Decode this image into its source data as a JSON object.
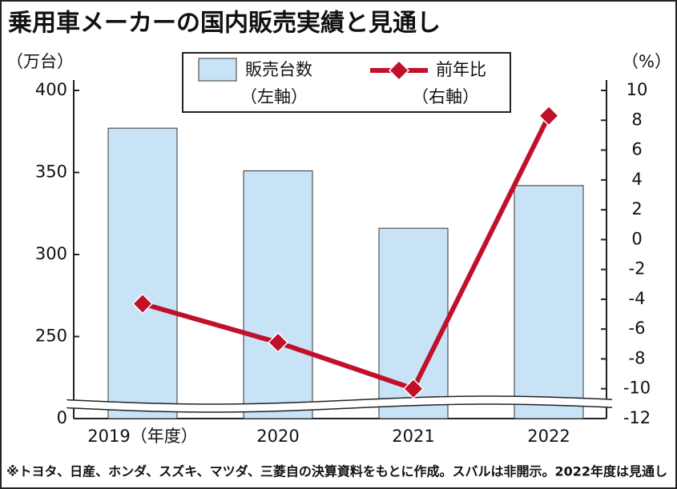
{
  "chart_data": {
    "type": "bar-line",
    "title": "乗用車メーカーの国内販売実績と見通し",
    "footnote": "※トヨタ、日産、ホンダ、スズキ、マツダ、三菱自の決算資料をもとに作成。スバルは非開示。2022年度は見通し",
    "y_unit": "（万台）",
    "y2_unit": "（%）",
    "categories": [
      "2019（年度）",
      "2020",
      "2021",
      "2022"
    ],
    "series": [
      {
        "name": "販売台数",
        "axis_note": "（左軸）",
        "type": "bar",
        "color": "#c8e3f6",
        "values": [
          377,
          351,
          316,
          342
        ]
      },
      {
        "name": "前年比",
        "axis_note": "（右軸）",
        "type": "line",
        "axis": "y2",
        "color": "#c0102a",
        "values": [
          -4.3,
          -6.9,
          -10.0,
          8.3
        ]
      }
    ],
    "ylim": [
      0,
      400
    ],
    "ybreak": [
      0,
      200
    ],
    "yticks": [
      0,
      250,
      300,
      350,
      400
    ],
    "y2lim": [
      -12,
      10
    ],
    "y2ticks": [
      -12,
      -10,
      -8,
      -6,
      -4,
      -2,
      0,
      2,
      4,
      6,
      8,
      10
    ]
  }
}
